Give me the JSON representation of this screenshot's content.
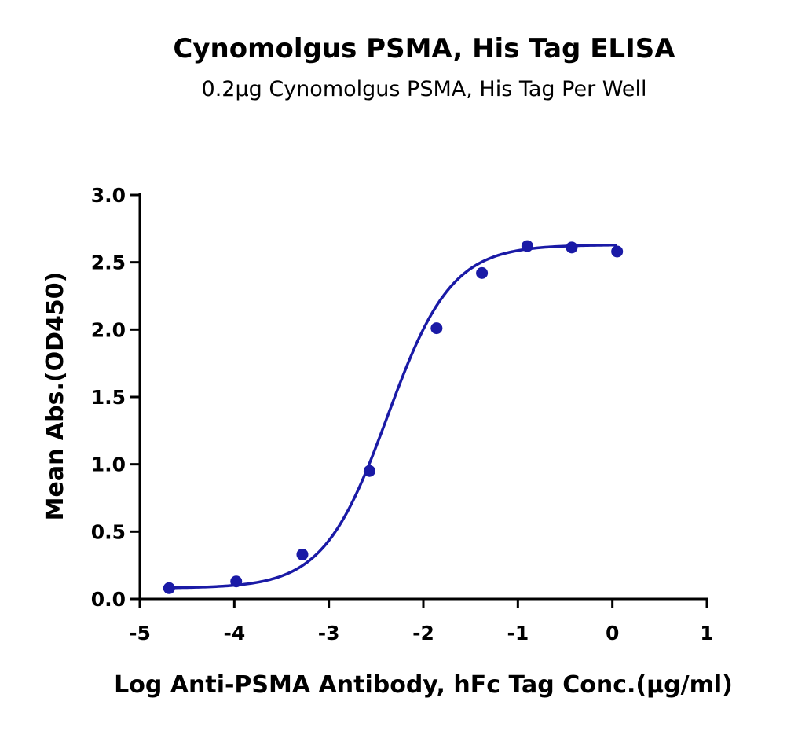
{
  "chart_data": {
    "type": "scatter",
    "title": "Cynomolgus PSMA, His Tag ELISA",
    "subtitle": "0.2μg Cynomolgus PSMA, His Tag Per Well",
    "xlabel": "Log Anti-PSMA Antibody, hFc Tag Conc.(μg/ml)",
    "ylabel": "Mean Abs.(OD450)",
    "xlim": [
      -5,
      1
    ],
    "ylim": [
      0,
      3
    ],
    "xticks": [
      -5,
      -4,
      -3,
      -2,
      -1,
      0,
      1
    ],
    "yticks": [
      0.0,
      0.5,
      1.0,
      1.5,
      2.0,
      2.5,
      3.0
    ],
    "xtick_labels": [
      "-5",
      "-4",
      "-3",
      "-2",
      "-1",
      "0",
      "1"
    ],
    "ytick_labels": [
      "0.0",
      "0.5",
      "1.0",
      "1.5",
      "2.0",
      "2.5",
      "3.0"
    ],
    "grid": false,
    "series": [
      {
        "x": [
          -4.69,
          -3.98,
          -3.28,
          -2.57,
          -1.86,
          -1.38,
          -0.9,
          -0.43,
          0.05
        ],
        "y": [
          0.08,
          0.13,
          0.33,
          0.95,
          2.01,
          2.42,
          2.62,
          2.61,
          2.58
        ],
        "fit": "4PL",
        "fit_params": {
          "bottom": 0.08,
          "top": 2.63,
          "logEC50": -2.38,
          "hillslope": 1.28
        },
        "color": "#1a1aa6"
      }
    ]
  }
}
